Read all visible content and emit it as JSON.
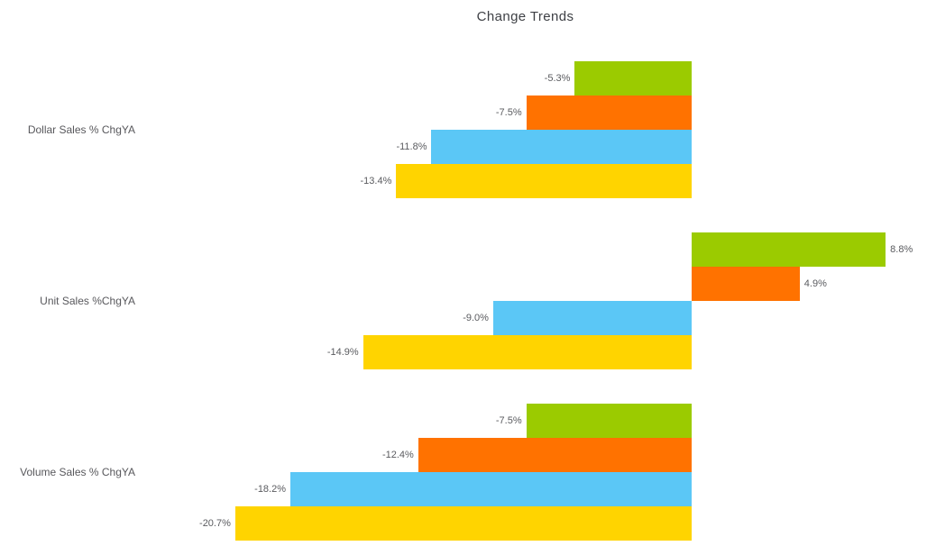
{
  "chart_data": {
    "type": "bar",
    "orientation": "horizontal",
    "title": "Change Trends",
    "title_color": "#3e4045",
    "label_color": "#5a5b5f",
    "value_suffix": "%",
    "grid": false,
    "legend": "none",
    "axis_lines": "none",
    "xlim": [
      -22,
      10
    ],
    "categories": [
      "Dollar Sales % ChgYA",
      "Unit Sales %ChgYA",
      "Volume Sales % ChgYA"
    ],
    "series": [
      {
        "name": "green-series",
        "color": "#9bcb00",
        "values": [
          -5.3,
          8.8,
          -7.5
        ],
        "labels": [
          "-5.3%",
          "8.8%",
          "-7.5%"
        ]
      },
      {
        "name": "orange-series",
        "color": "#ff7200",
        "values": [
          -7.5,
          4.9,
          -12.4
        ],
        "labels": [
          "-7.5%",
          "4.9%",
          "-12.4%"
        ]
      },
      {
        "name": "blue-series",
        "color": "#5bc7f6",
        "values": [
          -11.8,
          -9.0,
          -18.2
        ],
        "labels": [
          "-11.8%",
          "-9.0%",
          "-18.2%"
        ]
      },
      {
        "name": "yellow-series",
        "color": "#ffd400",
        "values": [
          -13.4,
          -14.9,
          -20.7
        ],
        "labels": [
          "-13.4%",
          "-14.9%",
          "-20.7%"
        ]
      }
    ]
  }
}
